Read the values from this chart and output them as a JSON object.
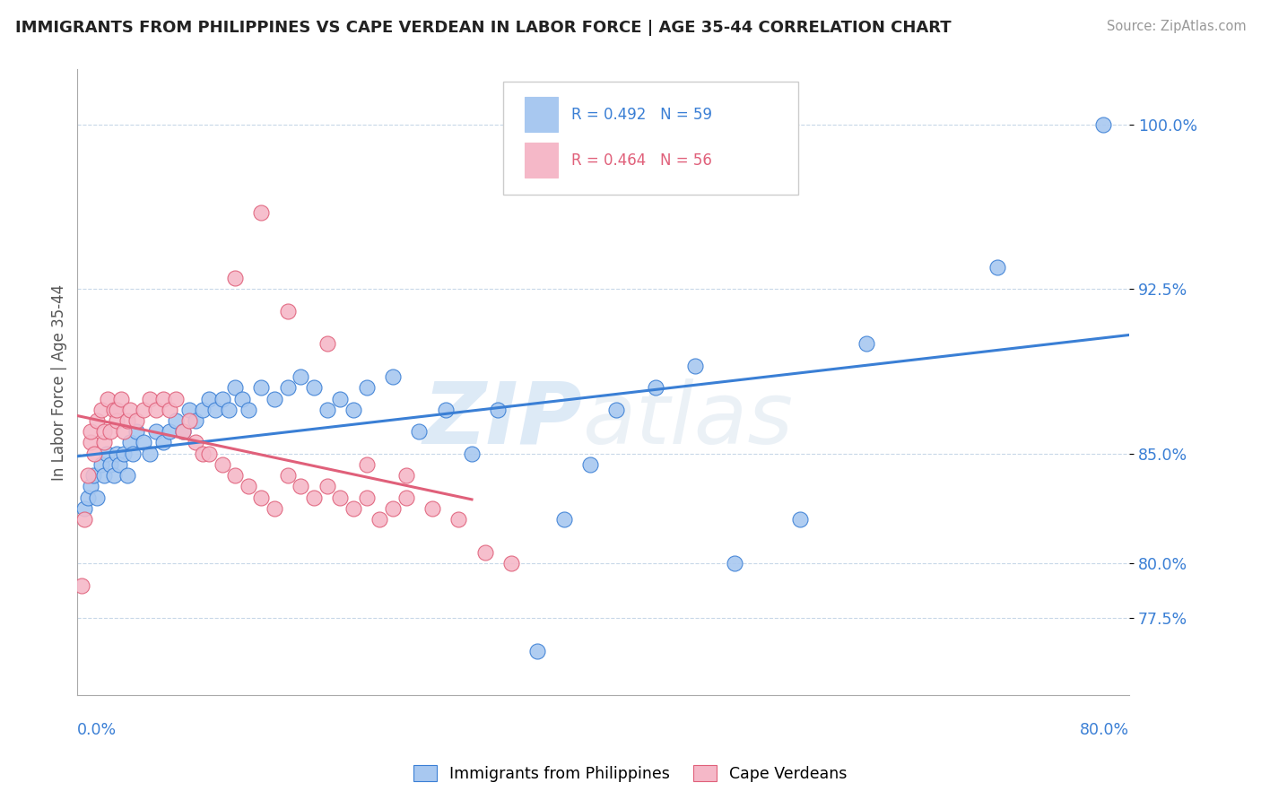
{
  "title": "IMMIGRANTS FROM PHILIPPINES VS CAPE VERDEAN IN LABOR FORCE | AGE 35-44 CORRELATION CHART",
  "source": "Source: ZipAtlas.com",
  "ylabel": "In Labor Force | Age 35-44",
  "xlim": [
    0.0,
    80.0
  ],
  "ylim": [
    74.0,
    102.5
  ],
  "series1_name": "Immigrants from Philippines",
  "series1_color": "#a8c8f0",
  "series1_R": 0.492,
  "series1_N": 59,
  "series2_name": "Cape Verdeans",
  "series2_color": "#f5b8c8",
  "series2_R": 0.464,
  "series2_N": 56,
  "line1_color": "#3a7fd5",
  "line2_color": "#e0607a",
  "ytick_vals": [
    80.0,
    77.5,
    85.0,
    92.5,
    100.0
  ],
  "ytick_labels": [
    "80.0%",
    "77.5%",
    "85.0%",
    "92.5%",
    "100.0%"
  ],
  "blue_scatter_x": [
    0.5,
    0.8,
    1.0,
    1.2,
    1.5,
    1.8,
    2.0,
    2.2,
    2.5,
    2.8,
    3.0,
    3.2,
    3.5,
    3.8,
    4.0,
    4.2,
    4.5,
    5.0,
    5.5,
    6.0,
    6.5,
    7.0,
    7.5,
    8.0,
    8.5,
    9.0,
    9.5,
    10.0,
    10.5,
    11.0,
    11.5,
    12.0,
    12.5,
    13.0,
    14.0,
    15.0,
    16.0,
    17.0,
    18.0,
    19.0,
    20.0,
    21.0,
    22.0,
    24.0,
    26.0,
    28.0,
    30.0,
    32.0,
    35.0,
    37.0,
    39.0,
    41.0,
    44.0,
    47.0,
    50.0,
    55.0,
    60.0,
    70.0,
    78.0
  ],
  "blue_scatter_y": [
    82.5,
    83.0,
    83.5,
    84.0,
    83.0,
    84.5,
    84.0,
    85.0,
    84.5,
    84.0,
    85.0,
    84.5,
    85.0,
    84.0,
    85.5,
    85.0,
    86.0,
    85.5,
    85.0,
    86.0,
    85.5,
    86.0,
    86.5,
    86.0,
    87.0,
    86.5,
    87.0,
    87.5,
    87.0,
    87.5,
    87.0,
    88.0,
    87.5,
    87.0,
    88.0,
    87.5,
    88.0,
    88.5,
    88.0,
    87.0,
    87.5,
    87.0,
    88.0,
    88.5,
    86.0,
    87.0,
    85.0,
    87.0,
    76.0,
    82.0,
    84.5,
    87.0,
    88.0,
    89.0,
    80.0,
    82.0,
    90.0,
    93.5,
    100.0
  ],
  "pink_scatter_x": [
    0.3,
    0.5,
    0.8,
    1.0,
    1.0,
    1.3,
    1.5,
    1.8,
    2.0,
    2.0,
    2.3,
    2.5,
    2.8,
    3.0,
    3.0,
    3.3,
    3.5,
    3.8,
    4.0,
    4.5,
    5.0,
    5.5,
    6.0,
    6.5,
    7.0,
    7.5,
    8.0,
    8.5,
    9.0,
    9.5,
    10.0,
    11.0,
    12.0,
    13.0,
    14.0,
    15.0,
    16.0,
    17.0,
    18.0,
    19.0,
    20.0,
    21.0,
    22.0,
    23.0,
    24.0,
    25.0,
    27.0,
    29.0,
    31.0,
    33.0,
    12.0,
    14.0,
    16.0,
    19.0,
    22.0,
    25.0
  ],
  "pink_scatter_y": [
    79.0,
    82.0,
    84.0,
    85.5,
    86.0,
    85.0,
    86.5,
    87.0,
    85.5,
    86.0,
    87.5,
    86.0,
    87.0,
    86.5,
    87.0,
    87.5,
    86.0,
    86.5,
    87.0,
    86.5,
    87.0,
    87.5,
    87.0,
    87.5,
    87.0,
    87.5,
    86.0,
    86.5,
    85.5,
    85.0,
    85.0,
    84.5,
    84.0,
    83.5,
    83.0,
    82.5,
    84.0,
    83.5,
    83.0,
    83.5,
    83.0,
    82.5,
    83.0,
    82.0,
    82.5,
    83.0,
    82.5,
    82.0,
    80.5,
    80.0,
    93.0,
    96.0,
    91.5,
    90.0,
    84.5,
    84.0
  ]
}
